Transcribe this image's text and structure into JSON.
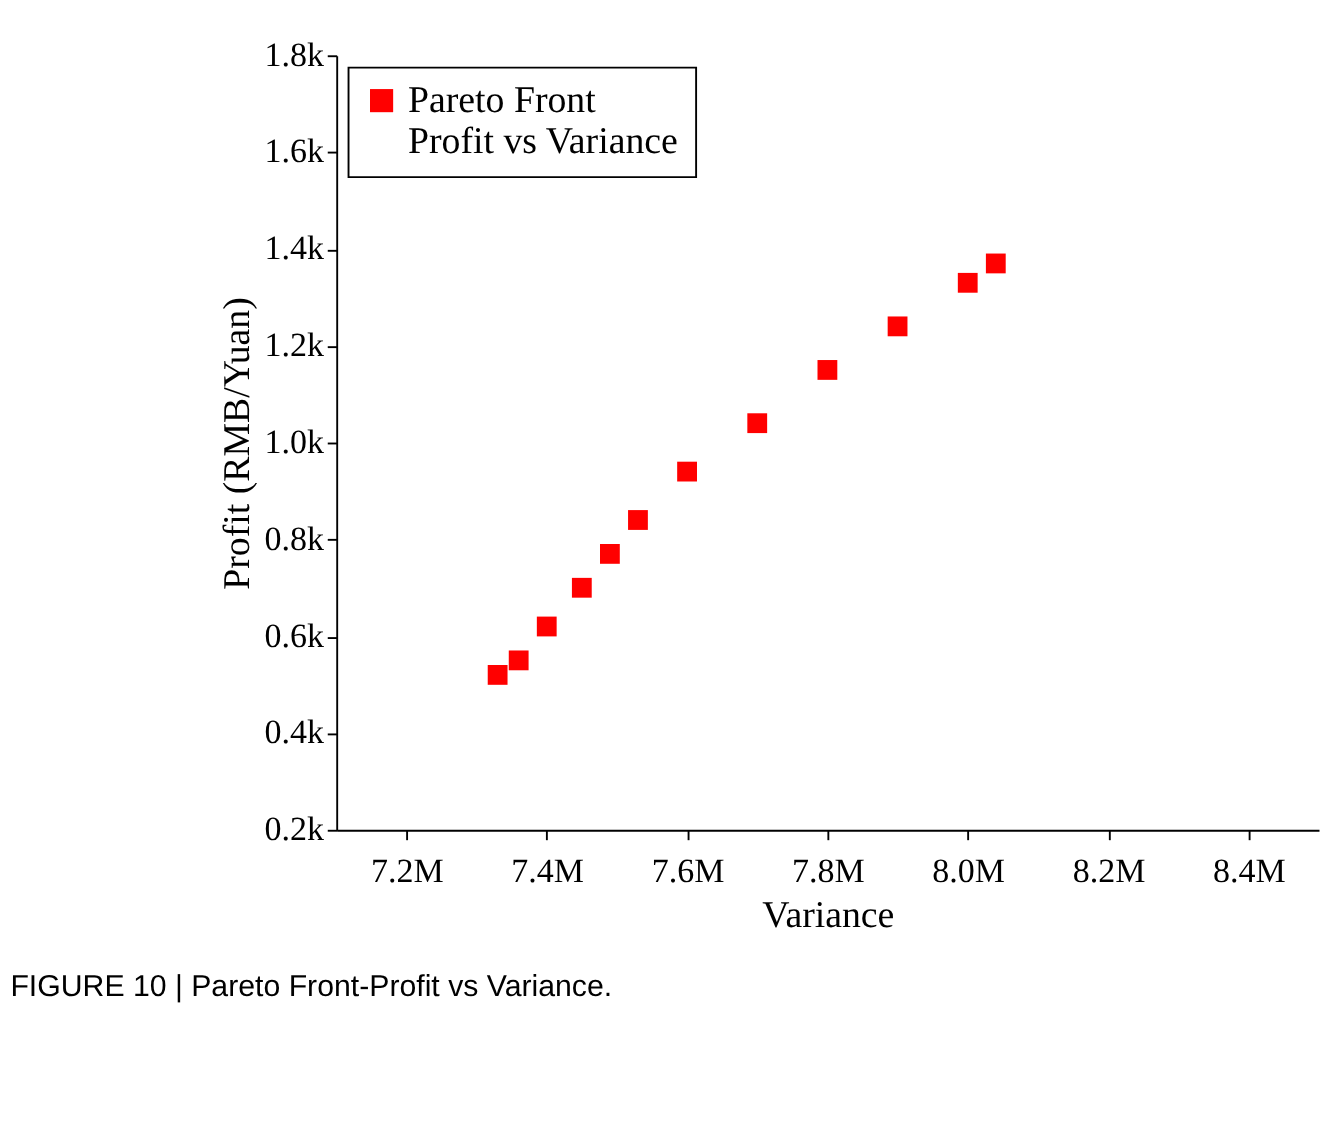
{
  "chart_data": {
    "type": "scatter",
    "xlabel": "Variance",
    "ylabel": "Profit (RMB/Yuan)",
    "x": [
      7330000,
      7360000,
      7400000,
      7450000,
      7490000,
      7530000,
      7600000,
      7700000,
      7800000,
      7900000,
      8000000,
      8040000
    ],
    "series": [
      {
        "name": "Pareto Front\nProfit vs Variance",
        "color": "#ff0000",
        "values": [
          520,
          550,
          620,
          700,
          770,
          840,
          940,
          1040,
          1150,
          1240,
          1330,
          1370
        ]
      }
    ],
    "marker": "square",
    "xlim": [
      7100000,
      8500000
    ],
    "xticks": [
      {
        "value": 7200000,
        "label": "7.2M"
      },
      {
        "value": 7400000,
        "label": "7.4M"
      },
      {
        "value": 7600000,
        "label": "7.6M"
      },
      {
        "value": 7800000,
        "label": "7.8M"
      },
      {
        "value": 8000000,
        "label": "8.0M"
      },
      {
        "value": 8200000,
        "label": "8.2M"
      },
      {
        "value": 8400000,
        "label": "8.4M"
      }
    ],
    "ylim": [
      200,
      1800
    ],
    "yticks": [
      {
        "value": 200,
        "label": "0.2k"
      },
      {
        "value": 400,
        "label": "0.4k"
      },
      {
        "value": 600,
        "label": "0.6k"
      },
      {
        "value": 800,
        "label": "0.8k"
      },
      {
        "value": 1000,
        "label": "1.0k"
      },
      {
        "value": 1200,
        "label": "1.2k"
      },
      {
        "value": 1400,
        "label": "1.4k"
      },
      {
        "value": 1600,
        "label": "1.6k"
      },
      {
        "value": 1800,
        "label": "1.8k"
      }
    ],
    "grid": false,
    "legend": "top left",
    "annotations": [
      "FIGURE 10 | Pareto Front-Profit vs Variance."
    ]
  }
}
